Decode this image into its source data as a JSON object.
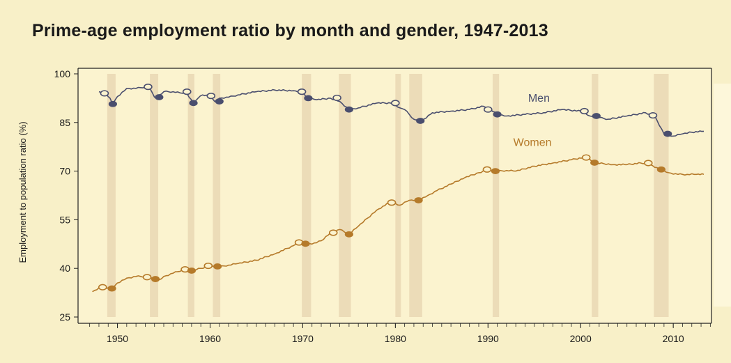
{
  "title": "Prime-age employment ratio by month and gender, 1947-2013",
  "chart_data": {
    "type": "line",
    "title": "Prime-age employment ratio by month and gender, 1947-2013",
    "xlabel": "",
    "ylabel": "Employment to population ratio (%)",
    "xlim": [
      1946.8,
      2014.2
    ],
    "ylim": [
      25,
      100
    ],
    "x_ticks": [
      1950,
      1960,
      1970,
      1980,
      1990,
      2000,
      2010
    ],
    "y_ticks": [
      25,
      40,
      55,
      70,
      85,
      100
    ],
    "grid": false,
    "recessions": [
      [
        1948.9,
        1949.8
      ],
      [
        1953.5,
        1954.4
      ],
      [
        1957.6,
        1958.3
      ],
      [
        1960.3,
        1961.1
      ],
      [
        1969.9,
        1970.9
      ],
      [
        1973.9,
        1975.2
      ],
      [
        1980.0,
        1980.6
      ],
      [
        1981.5,
        1982.9
      ],
      [
        1990.5,
        1991.2
      ],
      [
        2001.2,
        2001.9
      ],
      [
        2007.9,
        2009.5
      ]
    ],
    "series": [
      {
        "name": "Men",
        "color": "#4a4e6e",
        "x": [
          1948.0,
          1948.6,
          1949.2,
          1949.5,
          1950.0,
          1951.0,
          1952.0,
          1953.0,
          1953.5,
          1954.0,
          1954.3,
          1955.0,
          1956.0,
          1957.0,
          1957.5,
          1958.2,
          1958.7,
          1959.2,
          1960.0,
          1960.5,
          1961.0,
          1962.0,
          1963.0,
          1965.0,
          1967.0,
          1969.0,
          1969.9,
          1970.5,
          1971.5,
          1973.0,
          1974.0,
          1975.0,
          1976.0,
          1978.0,
          1979.5,
          1980.5,
          1981.0,
          1982.0,
          1982.9,
          1984.0,
          1986.0,
          1988.0,
          1989.5,
          1990.0,
          1991.0,
          1992.0,
          1994.0,
          1996.0,
          1998.0,
          2000.0,
          2001.0,
          2002.0,
          2003.0,
          2005.0,
          2007.0,
          2008.0,
          2009.0,
          2010.0,
          2011.0,
          2012.0,
          2013.3
        ],
        "y": [
          94.5,
          94.0,
          92.5,
          90.7,
          93.0,
          95.5,
          95.5,
          96.0,
          95.5,
          92.8,
          93.0,
          94.5,
          94.5,
          94.0,
          94.0,
          91.0,
          92.5,
          93.5,
          93.0,
          91.5,
          92.5,
          92.8,
          93.5,
          94.5,
          95.0,
          94.8,
          94.5,
          92.5,
          92.0,
          92.5,
          91.5,
          89.0,
          89.5,
          91.0,
          91.0,
          89.5,
          89.0,
          86.0,
          85.5,
          88.0,
          88.5,
          89.0,
          90.0,
          89.5,
          87.5,
          87.0,
          87.5,
          88.0,
          89.0,
          88.5,
          87.0,
          86.5,
          86.0,
          87.0,
          88.0,
          87.0,
          81.5,
          80.8,
          81.5,
          82.0,
          82.3
        ],
        "markers_open": [
          [
            1948.6,
            94.0
          ],
          [
            1953.3,
            96.0
          ],
          [
            1957.5,
            94.5
          ],
          [
            1960.1,
            93.2
          ],
          [
            1969.9,
            94.5
          ],
          [
            1973.7,
            92.6
          ],
          [
            1980.0,
            91.0
          ],
          [
            1990.0,
            89.0
          ],
          [
            2000.4,
            88.5
          ],
          [
            2007.8,
            87.2
          ]
        ],
        "markers_filled": [
          [
            1949.5,
            90.7
          ],
          [
            1954.5,
            92.8
          ],
          [
            1958.2,
            91.0
          ],
          [
            1961.0,
            91.5
          ],
          [
            1970.6,
            92.5
          ],
          [
            1975.0,
            89.0
          ],
          [
            1982.7,
            85.5
          ],
          [
            1991.0,
            87.5
          ],
          [
            2001.7,
            87.0
          ],
          [
            2009.4,
            81.5
          ]
        ]
      },
      {
        "name": "Women",
        "color": "#b57a2a",
        "x": [
          1947.3,
          1948.0,
          1949.0,
          1949.5,
          1950.0,
          1951.0,
          1952.0,
          1953.0,
          1953.8,
          1954.5,
          1955.0,
          1956.0,
          1957.0,
          1958.0,
          1959.0,
          1960.0,
          1961.0,
          1962.0,
          1963.0,
          1965.0,
          1967.0,
          1969.0,
          1970.0,
          1971.0,
          1972.0,
          1973.0,
          1974.0,
          1975.0,
          1976.0,
          1977.0,
          1978.0,
          1979.5,
          1980.5,
          1981.5,
          1982.5,
          1983.5,
          1984.5,
          1986.0,
          1987.5,
          1989.0,
          1990.0,
          1991.0,
          1992.0,
          1993.0,
          1995.0,
          1997.0,
          1999.0,
          2000.5,
          2001.5,
          2002.5,
          2003.5,
          2005.0,
          2006.5,
          2007.5,
          2008.5,
          2009.5,
          2010.5,
          2011.5,
          2012.5,
          2013.3
        ],
        "y": [
          32.8,
          34.0,
          34.0,
          33.8,
          35.5,
          37.0,
          37.5,
          37.5,
          37.0,
          36.5,
          37.5,
          38.5,
          39.5,
          39.3,
          40.0,
          40.8,
          40.5,
          41.0,
          41.5,
          42.5,
          44.5,
          47.0,
          48.0,
          47.5,
          48.5,
          51.0,
          52.0,
          50.5,
          53.0,
          55.5,
          58.0,
          60.5,
          59.5,
          61.0,
          61.0,
          62.5,
          64.0,
          66.0,
          68.0,
          69.5,
          70.5,
          70.0,
          70.2,
          70.0,
          71.5,
          72.5,
          73.5,
          74.3,
          72.5,
          72.3,
          72.0,
          72.0,
          72.5,
          72.0,
          70.5,
          69.5,
          69.0,
          69.0,
          69.0,
          69.0
        ],
        "markers_open": [
          [
            1948.4,
            34.2
          ],
          [
            1953.2,
            37.3
          ],
          [
            1957.3,
            39.7
          ],
          [
            1959.8,
            40.8
          ],
          [
            1969.6,
            48.0
          ],
          [
            1973.3,
            51.0
          ],
          [
            1979.6,
            60.3
          ],
          [
            1989.9,
            70.5
          ],
          [
            2000.6,
            74.2
          ],
          [
            2007.3,
            72.5
          ]
        ],
        "markers_filled": [
          [
            1949.4,
            33.8
          ],
          [
            1954.1,
            36.7
          ],
          [
            1958.0,
            39.3
          ],
          [
            1960.8,
            40.6
          ],
          [
            1970.3,
            47.6
          ],
          [
            1975.0,
            50.5
          ],
          [
            1982.5,
            61.0
          ],
          [
            1990.8,
            70.0
          ],
          [
            2001.5,
            72.6
          ],
          [
            2008.7,
            70.5
          ]
        ]
      }
    ]
  }
}
